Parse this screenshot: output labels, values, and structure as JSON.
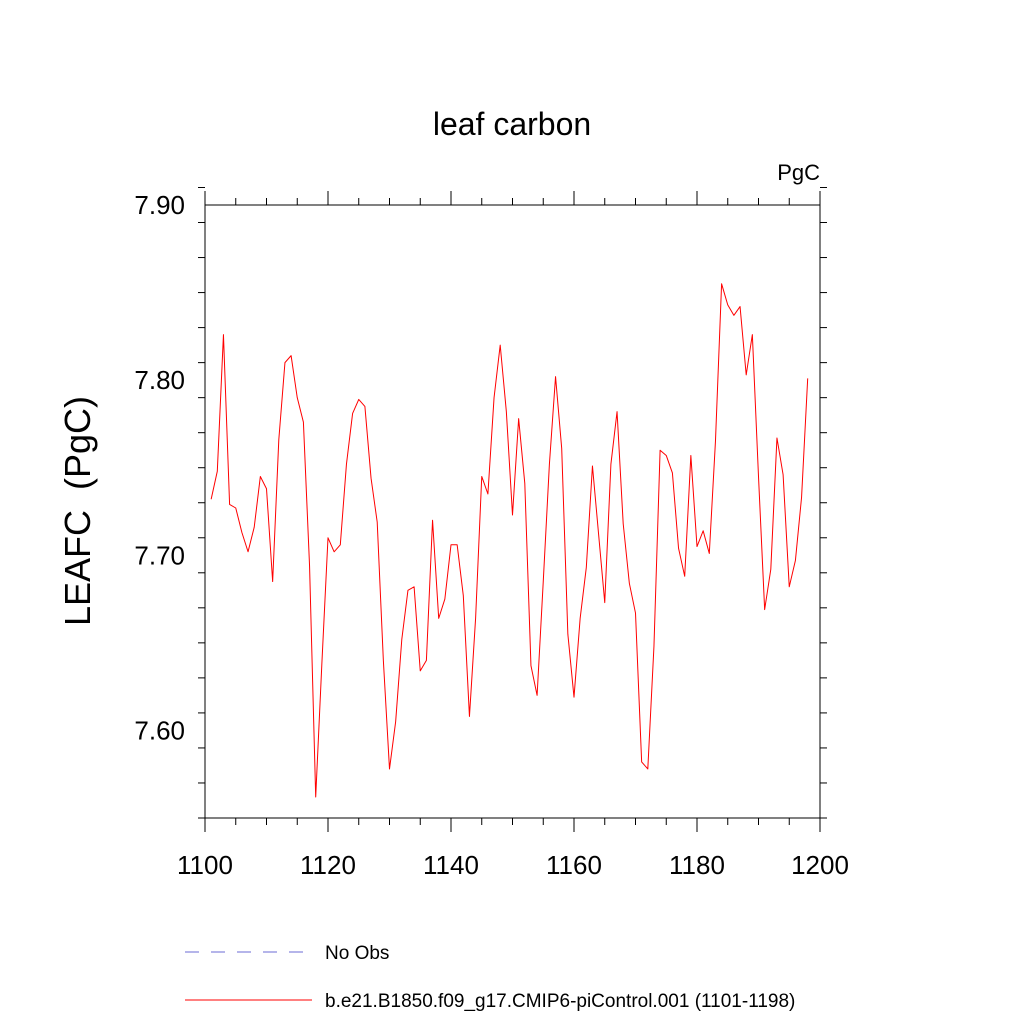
{
  "chart_data": {
    "type": "line",
    "title": "leaf carbon",
    "units_label": "PgC",
    "ylabel": "LEAFC  (PgC)",
    "xlabel": "",
    "xlim": [
      1100,
      1200
    ],
    "ylim": [
      7.55,
      7.9
    ],
    "x_ticks": [
      1100,
      1120,
      1140,
      1160,
      1180,
      1200
    ],
    "x_tick_labels": [
      "1100",
      "1120",
      "1140",
      "1160",
      "1180",
      "1200"
    ],
    "y_ticks": [
      7.6,
      7.7,
      7.8,
      7.9
    ],
    "y_tick_labels": [
      "7.60",
      "7.70",
      "7.80",
      "7.90"
    ],
    "x_minor_step": 5,
    "y_minor_step": 0.02,
    "grid": false,
    "legend_position": "bottom",
    "series": [
      {
        "name": "No Obs",
        "color": "#6b6bd6",
        "style": "dashed",
        "x": [],
        "values": []
      },
      {
        "name": "b.e21.B1850.f09_g17.CMIP6-piControl.001 (1101-1198)",
        "color": "#ff0000",
        "style": "solid",
        "x": [
          1101,
          1102,
          1103,
          1104,
          1105,
          1106,
          1107,
          1108,
          1109,
          1110,
          1111,
          1112,
          1113,
          1114,
          1115,
          1116,
          1117,
          1118,
          1119,
          1120,
          1121,
          1122,
          1123,
          1124,
          1125,
          1126,
          1127,
          1128,
          1129,
          1130,
          1131,
          1132,
          1133,
          1134,
          1135,
          1136,
          1137,
          1138,
          1139,
          1140,
          1141,
          1142,
          1143,
          1144,
          1145,
          1146,
          1147,
          1148,
          1149,
          1150,
          1151,
          1152,
          1153,
          1154,
          1155,
          1156,
          1157,
          1158,
          1159,
          1160,
          1161,
          1162,
          1163,
          1164,
          1165,
          1166,
          1167,
          1168,
          1169,
          1170,
          1171,
          1172,
          1173,
          1174,
          1175,
          1176,
          1177,
          1178,
          1179,
          1180,
          1181,
          1182,
          1183,
          1184,
          1185,
          1186,
          1187,
          1188,
          1189,
          1190,
          1191,
          1192,
          1193,
          1194,
          1195,
          1196,
          1197,
          1198
        ],
        "values": [
          7.732,
          7.748,
          7.826,
          7.729,
          7.727,
          7.713,
          7.702,
          7.716,
          7.745,
          7.738,
          7.685,
          7.766,
          7.81,
          7.814,
          7.79,
          7.776,
          7.694,
          7.562,
          7.638,
          7.71,
          7.702,
          7.706,
          7.752,
          7.781,
          7.789,
          7.785,
          7.744,
          7.719,
          7.64,
          7.578,
          7.605,
          7.652,
          7.68,
          7.682,
          7.634,
          7.64,
          7.72,
          7.664,
          7.675,
          7.706,
          7.706,
          7.677,
          7.608,
          7.664,
          7.745,
          7.735,
          7.79,
          7.82,
          7.782,
          7.723,
          7.778,
          7.741,
          7.637,
          7.62,
          7.685,
          7.752,
          7.802,
          7.761,
          7.655,
          7.619,
          7.664,
          7.693,
          7.751,
          7.712,
          7.673,
          7.752,
          7.782,
          7.718,
          7.684,
          7.667,
          7.582,
          7.578,
          7.648,
          7.76,
          7.757,
          7.747,
          7.704,
          7.688,
          7.757,
          7.705,
          7.714,
          7.701,
          7.765,
          7.855,
          7.843,
          7.837,
          7.842,
          7.803,
          7.826,
          7.745,
          7.669,
          7.692,
          7.767,
          7.746,
          7.682,
          7.697,
          7.733,
          7.801
        ]
      }
    ]
  }
}
